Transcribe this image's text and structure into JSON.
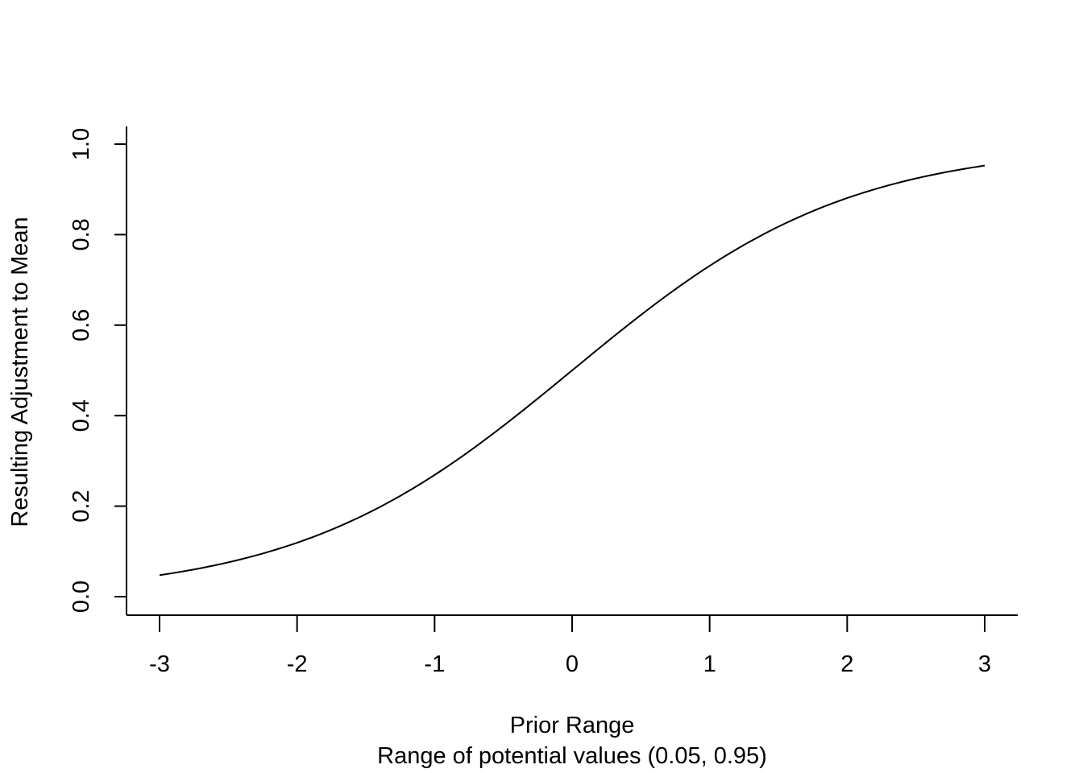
{
  "chart_data": {
    "type": "line",
    "title": "",
    "xlabel": "Prior Range",
    "xlabel2": "Range of potential values (0.05, 0.95)",
    "ylabel": "Resulting Adjustment to Mean",
    "xlim": [
      -3,
      3
    ],
    "ylim": [
      0,
      1
    ],
    "x_ticks": [
      -3,
      -2,
      -1,
      0,
      1,
      2,
      3
    ],
    "x_tick_labels": [
      "-3",
      "-2",
      "-1",
      "0",
      "1",
      "2",
      "3"
    ],
    "y_ticks": [
      0,
      0.2,
      0.4,
      0.6,
      0.8,
      1
    ],
    "y_tick_labels": [
      "0.0",
      "0.2",
      "0.4",
      "0.6",
      "0.8",
      "1.0"
    ],
    "grid": false,
    "series": [
      {
        "x": [
          -3,
          -2.5,
          -2,
          -1.5,
          -1,
          -0.5,
          0,
          0.5,
          1,
          1.5,
          2,
          2.5,
          3
        ],
        "y": [
          0.047,
          0.076,
          0.119,
          0.182,
          0.269,
          0.378,
          0.5,
          0.622,
          0.731,
          0.818,
          0.881,
          0.924,
          0.953
        ]
      }
    ],
    "colors": {
      "line": "#000000",
      "axis": "#000000",
      "background": "#ffffff"
    }
  }
}
